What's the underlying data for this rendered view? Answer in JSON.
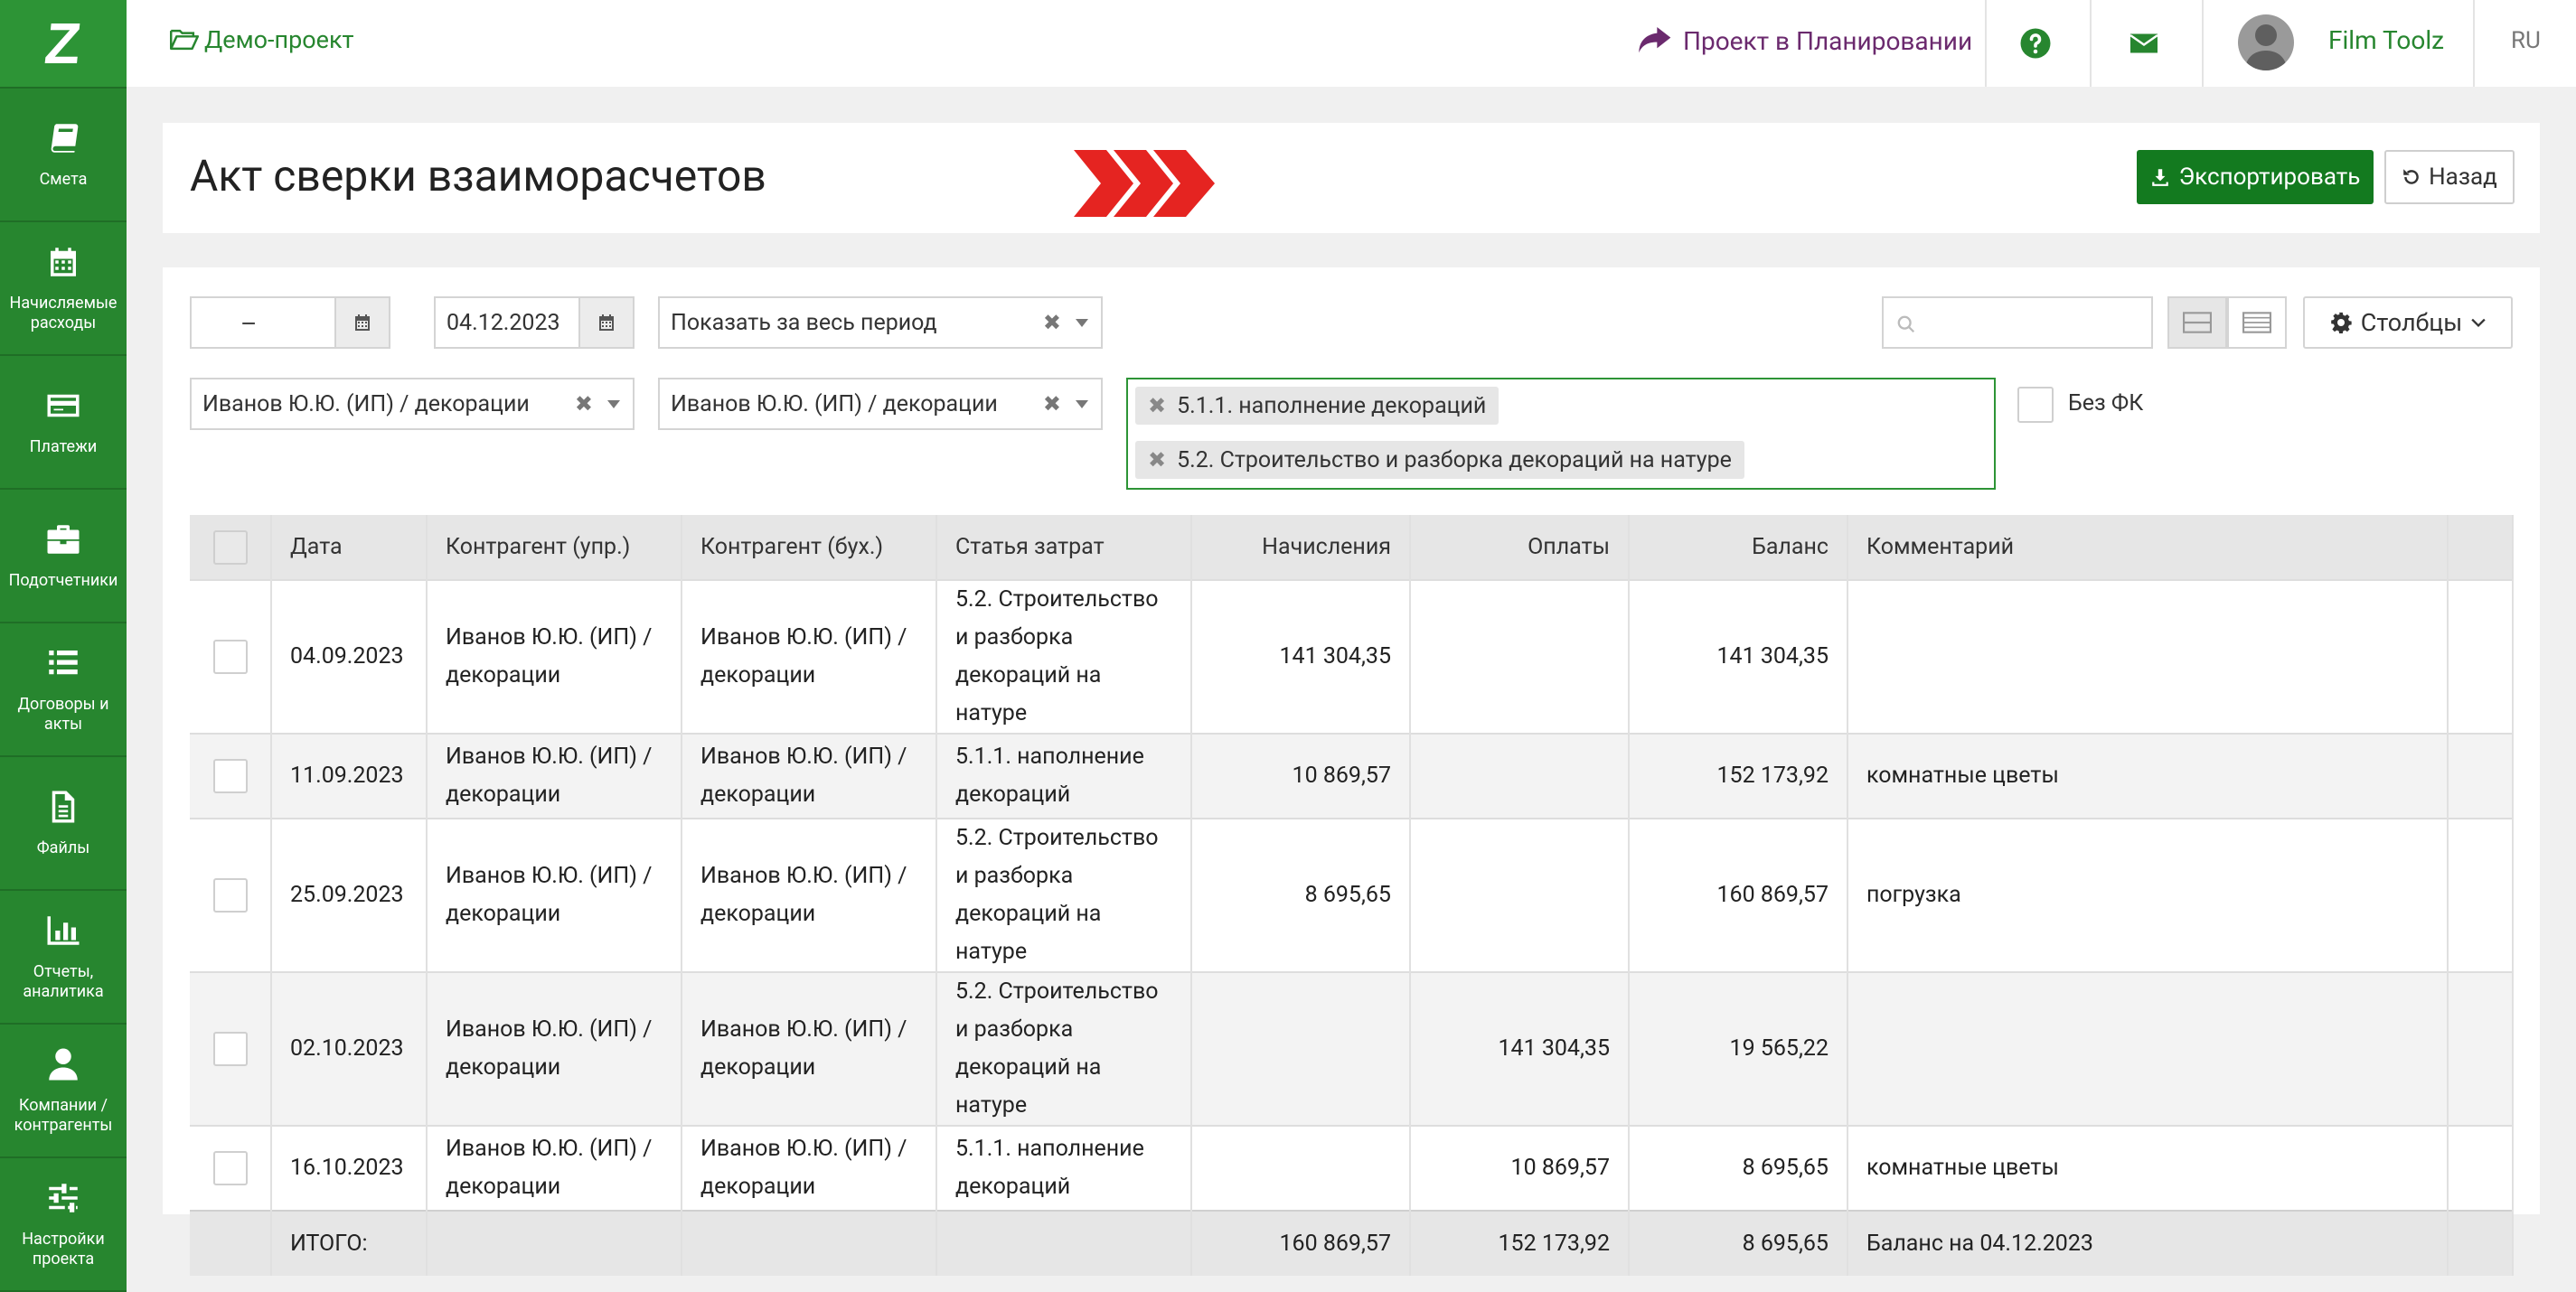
{
  "sidebar": {
    "logo_letter": "Z",
    "items": [
      {
        "label": "Смета",
        "icon": "book-icon"
      },
      {
        "label": "Начисляемые расходы",
        "icon": "calendar-icon"
      },
      {
        "label": "Платежи",
        "icon": "credit-card-icon"
      },
      {
        "label": "Подотчетники",
        "icon": "briefcase-icon"
      },
      {
        "label": "Договоры и акты",
        "icon": "list-icon"
      },
      {
        "label": "Файлы",
        "icon": "file-icon"
      },
      {
        "label": "Отчеты, аналитика",
        "icon": "bar-chart-icon"
      },
      {
        "label": "Компании / контрагенты",
        "icon": "user-icon"
      },
      {
        "label": "Настройки проекта",
        "icon": "sliders-icon"
      }
    ]
  },
  "topbar": {
    "project": "Демо-проект",
    "status": "Проект в Планировании",
    "user_name": "Film Toolz",
    "language": "RU"
  },
  "header": {
    "title": "Акт сверки взаиморасчетов",
    "export_label": "Экспортировать",
    "back_label": "Назад"
  },
  "filters": {
    "date_from": "",
    "date_to": "04.12.2023",
    "period": "Показать за весь период",
    "counterparty_mgmt": "Иванов Ю.Ю. (ИП) / декорации",
    "counterparty_acc": "Иванов Ю.Ю. (ИП) / декорации",
    "cost_tags": [
      "5.1.1. наполнение декораций",
      "5.2. Строительство и разборка декораций на натуре"
    ],
    "no_fk_label": "Без ФК",
    "search_placeholder": "",
    "columns_label": "Столбцы"
  },
  "table": {
    "headers": [
      "Дата",
      "Контрагент (упр.)",
      "Контрагент (бух.)",
      "Статья затрат",
      "Начисления",
      "Оплаты",
      "Баланс",
      "Комментарий"
    ],
    "rows": [
      {
        "date": "04.09.2023",
        "cp_mgmt": "Иванов Ю.Ю. (ИП) / декорации",
        "cp_acc": "Иванов Ю.Ю. (ИП) / декорации",
        "article": "5.2. Строительство и разборка декораций на натуре",
        "accrual": "141 304,35",
        "payment": "",
        "balance": "141 304,35",
        "comment": ""
      },
      {
        "date": "11.09.2023",
        "cp_mgmt": "Иванов Ю.Ю. (ИП) / декорации",
        "cp_acc": "Иванов Ю.Ю. (ИП) / декорации",
        "article": "5.1.1. наполнение декораций",
        "accrual": "10 869,57",
        "payment": "",
        "balance": "152 173,92",
        "comment": "комнатные цветы"
      },
      {
        "date": "25.09.2023",
        "cp_mgmt": "Иванов Ю.Ю. (ИП) / декорации",
        "cp_acc": "Иванов Ю.Ю. (ИП) / декорации",
        "article": "5.2. Строительство и разборка декораций на натуре",
        "accrual": "8 695,65",
        "payment": "",
        "balance": "160 869,57",
        "comment": "погрузка"
      },
      {
        "date": "02.10.2023",
        "cp_mgmt": "Иванов Ю.Ю. (ИП) / декорации",
        "cp_acc": "Иванов Ю.Ю. (ИП) / декорации",
        "article": "5.2. Строительство и разборка декораций на натуре",
        "accrual": "",
        "payment": "141 304,35",
        "balance": "19 565,22",
        "comment": ""
      },
      {
        "date": "16.10.2023",
        "cp_mgmt": "Иванов Ю.Ю. (ИП) / декорации",
        "cp_acc": "Иванов Ю.Ю. (ИП) / декорации",
        "article": "5.1.1. наполнение декораций",
        "accrual": "",
        "payment": "10 869,57",
        "balance": "8 695,65",
        "comment": "комнатные цветы"
      }
    ],
    "total": {
      "label": "ИТОГО:",
      "accrual": "160 869,57",
      "payment": "152 173,92",
      "balance": "8 695,65",
      "comment": "Баланс на 04.12.2023"
    }
  },
  "colors": {
    "brand_green": "#27862f",
    "export_green": "#137a1f",
    "status_purple": "#6b2a6e",
    "chevron_red": "#e52421"
  }
}
